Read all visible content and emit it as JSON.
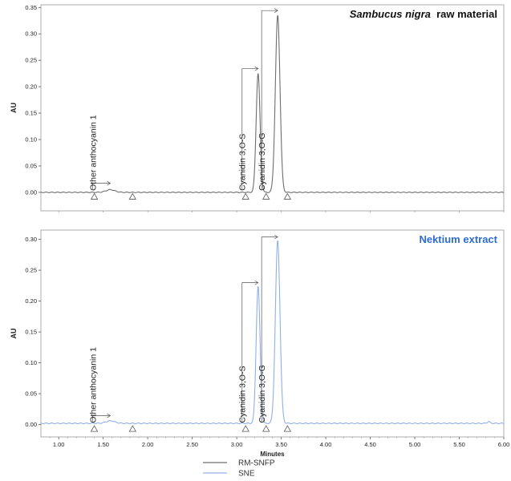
{
  "chart_data": [
    {
      "type": "line",
      "title": "Sambucus nigra  raw material",
      "title_parts": {
        "italic": "Sambucus nigra",
        "normal": " raw material"
      },
      "title_color": "#111111",
      "ylabel": "AU",
      "xlabel": "",
      "xlim": [
        0.8,
        6.0
      ],
      "ylim": [
        -0.035,
        0.355
      ],
      "y_ticks": [
        "0.00",
        "0.05",
        "0.10",
        "0.15",
        "0.20",
        "0.25",
        "0.30",
        "0.35"
      ],
      "y_tick_values": [
        0.0,
        0.05,
        0.1,
        0.15,
        0.2,
        0.25,
        0.3,
        0.35
      ],
      "series": [
        {
          "name": "RM-SNFP",
          "color": "#6e6e6e",
          "baseline": 0.0,
          "peaks": [
            {
              "x": 1.58,
              "height": 0.005,
              "width": 0.05
            },
            {
              "x": 3.24,
              "height": 0.225,
              "width": 0.022
            },
            {
              "x": 3.46,
              "height": 0.335,
              "width": 0.026
            }
          ]
        }
      ],
      "annotations": [
        {
          "text": "Other anthocyanin 1",
          "x": 1.58,
          "y": 0.005
        },
        {
          "text": "Cyanidin 3,O-S",
          "x": 3.24,
          "y": 0.225
        },
        {
          "text": "Cyanidin 3,O-G",
          "x": 3.46,
          "y": 0.335
        }
      ],
      "markers_x": [
        1.4,
        1.83,
        3.1,
        3.33,
        3.57
      ]
    },
    {
      "type": "line",
      "title": "Nektium extract",
      "title_color": "#2e6bd6",
      "ylabel": "AU",
      "xlabel": "Minutes",
      "xlim": [
        0.8,
        6.0
      ],
      "ylim": [
        -0.02,
        0.315
      ],
      "y_ticks": [
        "0.00",
        "0.05",
        "0.10",
        "0.15",
        "0.20",
        "0.25",
        "0.30"
      ],
      "y_tick_values": [
        0.0,
        0.05,
        0.1,
        0.15,
        0.2,
        0.25,
        0.3
      ],
      "x_ticks": [
        "1.00",
        "1.50",
        "2.00",
        "2.50",
        "3.00",
        "3.50",
        "4.00",
        "4.50",
        "5.00",
        "5.50",
        "6.00"
      ],
      "x_tick_values": [
        1.0,
        1.5,
        2.0,
        2.5,
        3.0,
        3.5,
        4.0,
        4.5,
        5.0,
        5.5,
        6.0
      ],
      "series": [
        {
          "name": "SNE",
          "color": "#8fb0e8",
          "baseline": 0.002,
          "peaks": [
            {
              "x": 1.58,
              "height": 0.004,
              "width": 0.05
            },
            {
              "x": 3.24,
              "height": 0.222,
              "width": 0.022
            },
            {
              "x": 3.46,
              "height": 0.296,
              "width": 0.026
            },
            {
              "x": 5.83,
              "height": 0.003,
              "width": 0.015
            }
          ]
        }
      ],
      "annotations": [
        {
          "text": "Other anthocyanin 1",
          "x": 1.58,
          "y": 0.004
        },
        {
          "text": "Cyanidin 3,O-S",
          "x": 3.24,
          "y": 0.222
        },
        {
          "text": "Cyanidin 3,O-G",
          "x": 3.46,
          "y": 0.296
        }
      ],
      "markers_x": [
        1.4,
        1.83,
        3.1,
        3.33,
        3.57
      ]
    }
  ],
  "legend": {
    "placement": "bottom-center",
    "entries": [
      {
        "label": "RM-SNFP",
        "color": "#6e6e6e"
      },
      {
        "label": "SNE",
        "color": "#8fb0e8"
      }
    ]
  }
}
